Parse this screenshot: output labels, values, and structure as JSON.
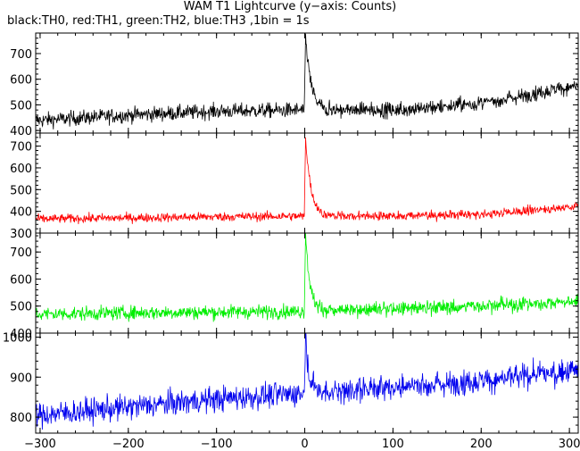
{
  "title": "WAM T1 Lightcurve (y−axis: Counts)",
  "subtitle": "black:TH0, red:TH1, green:TH2, blue:TH3 ,1bin = 1s",
  "chart_data": {
    "type": "line",
    "x_range": [
      -305,
      310
    ],
    "x_ticks": [
      -300,
      -200,
      -100,
      0,
      100,
      200,
      300
    ],
    "x_tick_labels": [
      "−300",
      "−200",
      "−100",
      "0",
      "100",
      "200",
      "300"
    ],
    "bin_seconds": 1,
    "panels": [
      {
        "series_name": "TH0",
        "color": "#000000",
        "ylim": [
          390,
          780
        ],
        "y_ticks": [
          400,
          500,
          600,
          700
        ],
        "y_tick_labels": [
          "400",
          "500",
          "600",
          "700"
        ],
        "baseline": [
          [
            -300,
            440
          ],
          [
            -200,
            460
          ],
          [
            -100,
            475
          ],
          [
            0,
            480
          ],
          [
            100,
            480
          ],
          [
            200,
            505
          ],
          [
            300,
            570
          ],
          [
            310,
            575
          ]
        ],
        "noise": 28,
        "peak": {
          "x": 1,
          "value": 770,
          "decay_s": 6,
          "floor": 480
        }
      },
      {
        "series_name": "TH1",
        "color": "#ff0000",
        "ylim": [
          300,
          760
        ],
        "y_ticks": [
          300,
          400,
          500,
          600,
          700
        ],
        "y_tick_labels": [
          "300",
          "400",
          "500",
          "600",
          "700"
        ],
        "baseline": [
          [
            -300,
            365
          ],
          [
            -200,
            370
          ],
          [
            -100,
            375
          ],
          [
            0,
            378
          ],
          [
            100,
            380
          ],
          [
            200,
            385
          ],
          [
            300,
            420
          ],
          [
            310,
            425
          ]
        ],
        "noise": 20,
        "peak": {
          "x": 1,
          "value": 740,
          "decay_s": 6,
          "floor": 380
        }
      },
      {
        "series_name": "TH2",
        "color": "#00ee00",
        "ylim": [
          400,
          770
        ],
        "y_ticks": [
          400,
          500,
          600,
          700
        ],
        "y_tick_labels": [
          "400",
          "500",
          "600",
          "700"
        ],
        "baseline": [
          [
            -300,
            470
          ],
          [
            -200,
            475
          ],
          [
            -100,
            478
          ],
          [
            0,
            480
          ],
          [
            100,
            490
          ],
          [
            200,
            500
          ],
          [
            300,
            515
          ],
          [
            310,
            518
          ]
        ],
        "noise": 25,
        "peak": {
          "x": 1,
          "value": 760,
          "decay_s": 5,
          "floor": 485
        }
      },
      {
        "series_name": "TH3",
        "color": "#0000ee",
        "ylim": [
          760,
          1010
        ],
        "y_ticks": [
          800,
          900,
          1000
        ],
        "y_tick_labels": [
          "800",
          "900",
          "1000"
        ],
        "baseline": [
          [
            -300,
            805
          ],
          [
            -200,
            825
          ],
          [
            -100,
            845
          ],
          [
            0,
            860
          ],
          [
            100,
            875
          ],
          [
            200,
            890
          ],
          [
            300,
            915
          ],
          [
            310,
            920
          ]
        ],
        "noise": 30,
        "peak": {
          "x": 1,
          "value": 1000,
          "decay_s": 4,
          "floor": 870
        }
      }
    ]
  }
}
